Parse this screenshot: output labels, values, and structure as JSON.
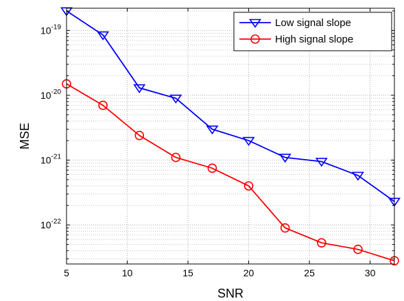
{
  "chart_data": {
    "type": "line",
    "title": "",
    "xlabel": "SNR",
    "ylabel": "MSE",
    "xlim": [
      5,
      32
    ],
    "ylim": [
      2.5e-23,
      2.2e-19
    ],
    "yscale": "log",
    "grid": true,
    "legend_position": "top-right",
    "x_ticks": [
      5,
      10,
      15,
      20,
      25,
      30
    ],
    "y_ticks": [
      1e-22,
      1e-21,
      1e-20,
      1e-19
    ],
    "x": [
      5,
      8,
      11,
      14,
      17,
      20,
      23,
      26,
      29,
      32
    ],
    "series": [
      {
        "name": "Low signal slope",
        "color": "#0000ff",
        "marker": "triangle-down",
        "values": [
          2e-19,
          8.5e-20,
          1.3e-20,
          9e-21,
          3e-21,
          2e-21,
          1.1e-21,
          9.5e-22,
          5.8e-22,
          2.3e-22
        ]
      },
      {
        "name": "High signal slope",
        "color": "#ff0000",
        "marker": "circle",
        "values": [
          1.5e-20,
          7e-21,
          2.4e-21,
          1.1e-21,
          7.5e-22,
          4e-22,
          9e-23,
          5.3e-23,
          4.2e-23,
          2.8e-23
        ]
      }
    ]
  }
}
